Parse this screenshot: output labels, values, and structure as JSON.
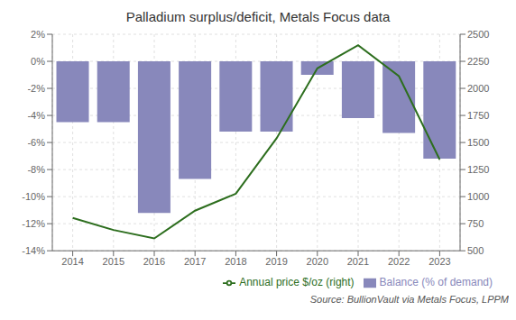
{
  "chart_data": {
    "type": "bar",
    "title": "Palladium surplus/deficit,  Metals Focus data",
    "annotations": [
      "Source:  BullionVault via  Metals Focus, LPPM"
    ],
    "categories": [
      "2014",
      "2015",
      "2016",
      "2017",
      "2018",
      "2019",
      "2020",
      "2021",
      "2022",
      "2023"
    ],
    "series": [
      {
        "name": "Balance (% of demand)",
        "type": "bar",
        "color": "#8888bb",
        "values": [
          -4.5,
          -4.5,
          -11.2,
          -8.7,
          -5.2,
          -5.2,
          -1.0,
          -4.2,
          -5.3,
          -7.2
        ]
      },
      {
        "name": "Annual price $/oz (right)",
        "type": "line",
        "color": "#2d6e1e",
        "axis": "y2",
        "values": [
          803,
          692,
          614,
          870,
          1027,
          1539,
          2185,
          2399,
          2113,
          1342
        ]
      }
    ],
    "ylim": [
      -14,
      2
    ],
    "yticks": [
      {
        "value": 2,
        "label": "2%"
      },
      {
        "value": 0,
        "label": "0%"
      },
      {
        "value": -2,
        "label": "-2%"
      },
      {
        "value": -4,
        "label": "-4%"
      },
      {
        "value": -6,
        "label": "-6%"
      },
      {
        "value": -8,
        "label": "-8%"
      },
      {
        "value": -10,
        "label": "-10%"
      },
      {
        "value": -12,
        "label": "-12%"
      },
      {
        "value": -14,
        "label": "-14%"
      }
    ],
    "y2lim": [
      500,
      2500
    ],
    "y2ticks": [
      500,
      750,
      1000,
      1250,
      1500,
      1750,
      2000,
      2250,
      2500
    ],
    "grid": true,
    "legend": "lower right"
  }
}
